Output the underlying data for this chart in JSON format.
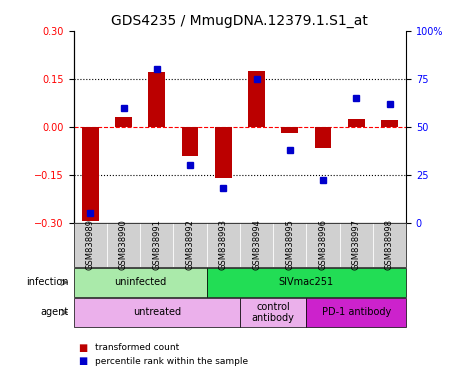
{
  "title": "GDS4235 / MmugDNA.12379.1.S1_at",
  "samples": [
    "GSM838989",
    "GSM838990",
    "GSM838991",
    "GSM838992",
    "GSM838993",
    "GSM838994",
    "GSM838995",
    "GSM838996",
    "GSM838997",
    "GSM838998"
  ],
  "transformed_count": [
    -0.295,
    0.03,
    0.17,
    -0.09,
    -0.16,
    0.175,
    -0.02,
    -0.065,
    0.025,
    0.02
  ],
  "percentile_rank": [
    5,
    60,
    80,
    30,
    18,
    75,
    38,
    22,
    65,
    62
  ],
  "ylim": [
    -0.3,
    0.3
  ],
  "yticks": [
    -0.3,
    -0.15,
    0,
    0.15,
    0.3
  ],
  "right_yticks": [
    0,
    25,
    50,
    75,
    100
  ],
  "right_yticklabels": [
    "0",
    "25",
    "50",
    "75",
    "100%"
  ],
  "bar_color": "#BB0000",
  "dot_color": "#0000CC",
  "bar_width": 0.5,
  "dot_size": 4,
  "infection_groups": [
    {
      "label": "uninfected",
      "start": 0,
      "end": 4,
      "color": "#AAEAAA"
    },
    {
      "label": "SIVmac251",
      "start": 4,
      "end": 10,
      "color": "#22DD55"
    }
  ],
  "agent_groups": [
    {
      "label": "untreated",
      "start": 0,
      "end": 5,
      "color": "#EBB0EB"
    },
    {
      "label": "control\nantibody",
      "start": 5,
      "end": 7,
      "color": "#EBB0EB"
    },
    {
      "label": "PD-1 antibody",
      "start": 7,
      "end": 10,
      "color": "#CC22CC"
    }
  ],
  "sample_bg_color": "#D0D0D0",
  "sample_bg_edge": "#FFFFFF",
  "legend_items": [
    {
      "color": "#BB0000",
      "label": "transformed count"
    },
    {
      "color": "#0000CC",
      "label": "percentile rank within the sample"
    }
  ],
  "title_fontsize": 10,
  "tick_fontsize": 7,
  "label_fontsize": 7,
  "sample_fontsize": 6
}
